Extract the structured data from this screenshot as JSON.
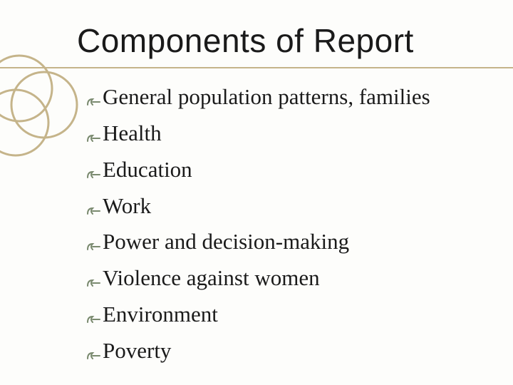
{
  "title": "Components of Report",
  "title_fontsize": 46,
  "title_font": "Arial",
  "title_color": "#1a1a1a",
  "underline_color": "#c5b48a",
  "background_color": "#fdfdfb",
  "circles": {
    "stroke_color": "#c5b48a",
    "stroke_width": 3,
    "count": 3
  },
  "bullet_glyph": "་",
  "bullet_color": "#7a8a6f",
  "item_fontsize": 31,
  "item_color": "#1a1a1a",
  "items": [
    "General population patterns, families",
    "Health",
    "Education",
    "Work",
    "Power and decision-making",
    "Violence against women",
    "Environment",
    "Poverty"
  ]
}
